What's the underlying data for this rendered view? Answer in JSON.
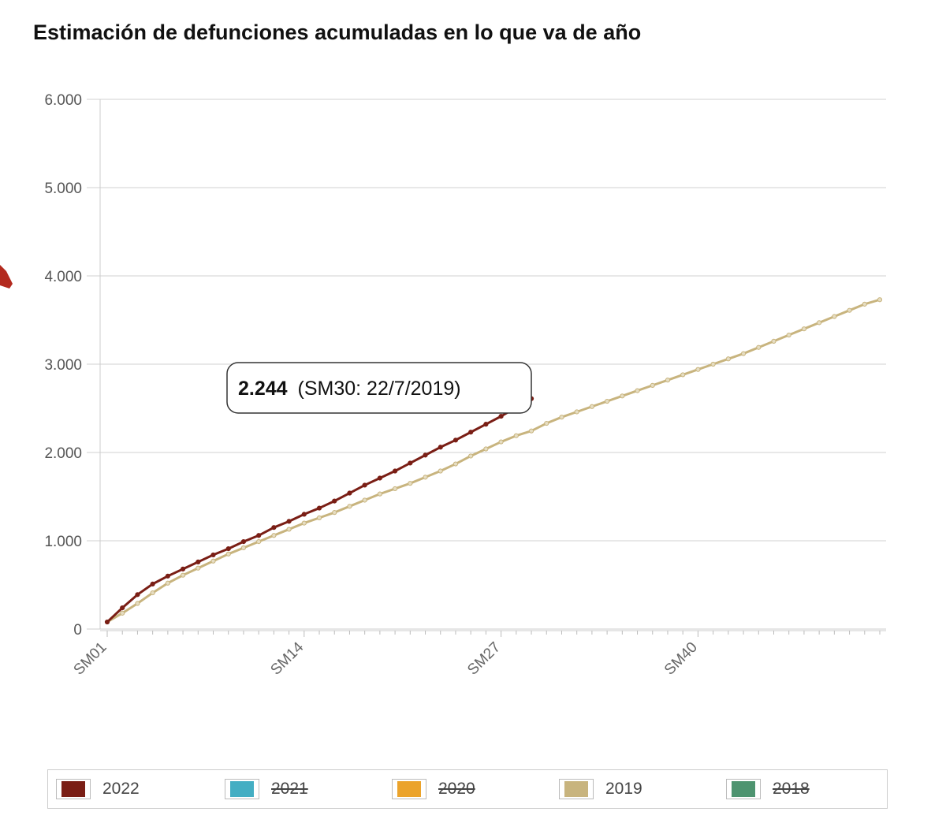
{
  "title": "Estimación de defunciones acumuladas en lo que va de año",
  "colors": {
    "y2022": "#7a1e15",
    "y2021": "#44aec3",
    "y2020": "#eba32b",
    "y2019": "#c8b47e",
    "y2018": "#4e9470",
    "grid": "#d0d0d0",
    "axis": "#cccccc"
  },
  "tooltip": {
    "value": "2.244",
    "detail": "(SM30: 22/7/2019)"
  },
  "legend": [
    {
      "label": "2022",
      "color": "#7a1e15",
      "active": true
    },
    {
      "label": "2021",
      "color": "#44aec3",
      "active": false
    },
    {
      "label": "2020",
      "color": "#eba32b",
      "active": false
    },
    {
      "label": "2019",
      "color": "#c8b47e",
      "active": true
    },
    {
      "label": "2018",
      "color": "#4e9470",
      "active": false
    }
  ],
  "chart_data": {
    "type": "line",
    "title": "Estimación de defunciones acumuladas en lo que va de año",
    "xlabel": "",
    "ylabel": "",
    "ylim": [
      0,
      6000
    ],
    "y_ticks": [
      "0",
      "1.000",
      "2.000",
      "3.000",
      "4.000",
      "5.000",
      "6.000"
    ],
    "y_tick_values": [
      0,
      1000,
      2000,
      3000,
      4000,
      5000,
      6000
    ],
    "x_tick_labels": [
      "SM01",
      "SM14",
      "SM27",
      "SM40"
    ],
    "x_tick_weeks": [
      1,
      14,
      27,
      40
    ],
    "weeks_total": 52,
    "grid": true,
    "legend_position": "bottom",
    "series": [
      {
        "name": "2022",
        "color": "#7a1e15",
        "values": [
          80,
          240,
          390,
          510,
          600,
          680,
          760,
          840,
          910,
          990,
          1060,
          1150,
          1220,
          1300,
          1370,
          1450,
          1540,
          1630,
          1710,
          1790,
          1880,
          1970,
          2060,
          2140,
          2230,
          2320,
          2410,
          2510,
          2610
        ]
      },
      {
        "name": "2019",
        "color": "#c8b47e",
        "values": [
          80,
          180,
          290,
          410,
          520,
          610,
          690,
          770,
          850,
          920,
          990,
          1060,
          1130,
          1200,
          1260,
          1320,
          1390,
          1460,
          1530,
          1590,
          1650,
          1720,
          1790,
          1870,
          1960,
          2040,
          2120,
          2190,
          2244,
          2330,
          2400,
          2460,
          2520,
          2580,
          2640,
          2700,
          2760,
          2820,
          2880,
          2940,
          3000,
          3060,
          3120,
          3190,
          3260,
          3330,
          3400,
          3470,
          3540,
          3610,
          3680,
          3730
        ]
      }
    ],
    "annotations": [
      {
        "text": "2.244 (SM30: 22/7/2019)",
        "series": "2019",
        "week": 30,
        "value": 2244
      }
    ]
  }
}
